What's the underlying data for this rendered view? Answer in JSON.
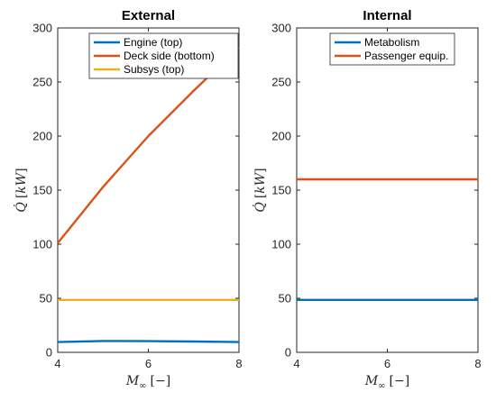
{
  "chart_data": [
    {
      "type": "line",
      "title": "External",
      "xlabel": "M_∞ [−]",
      "ylabel": "Q̇ [kW]",
      "xlim": [
        4,
        8
      ],
      "ylim": [
        0,
        300
      ],
      "xticks": [
        4,
        6,
        8
      ],
      "yticks": [
        0,
        50,
        100,
        150,
        200,
        250,
        300
      ],
      "grid": false,
      "legend_position": "top-right",
      "series": [
        {
          "name": "Engine (top)",
          "color": "#0072BD",
          "x": [
            4,
            5,
            6,
            7,
            8
          ],
          "y": [
            9.5,
            10.5,
            10.3,
            10,
            9.5
          ]
        },
        {
          "name": "Deck side (bottom)",
          "color": "#D95319",
          "x": [
            4,
            5,
            6,
            7,
            8
          ],
          "y": [
            101,
            153,
            200,
            242,
            282
          ]
        },
        {
          "name": "Subsys (top)",
          "color": "#EDB120",
          "x": [
            4,
            8
          ],
          "y": [
            48.5,
            48.5
          ]
        }
      ]
    },
    {
      "type": "line",
      "title": "Internal",
      "xlabel": "M_∞ [−]",
      "ylabel": "Q̇ [kW]",
      "xlim": [
        4,
        8
      ],
      "ylim": [
        0,
        300
      ],
      "xticks": [
        4,
        6,
        8
      ],
      "yticks": [
        0,
        50,
        100,
        150,
        200,
        250,
        300
      ],
      "grid": false,
      "legend_position": "top-right",
      "series": [
        {
          "name": "Metabolism",
          "color": "#0072BD",
          "x": [
            4,
            8
          ],
          "y": [
            48.5,
            48.5
          ]
        },
        {
          "name": "Passenger equip.",
          "color": "#D95319",
          "x": [
            4,
            8
          ],
          "y": [
            160,
            160
          ]
        }
      ]
    }
  ]
}
